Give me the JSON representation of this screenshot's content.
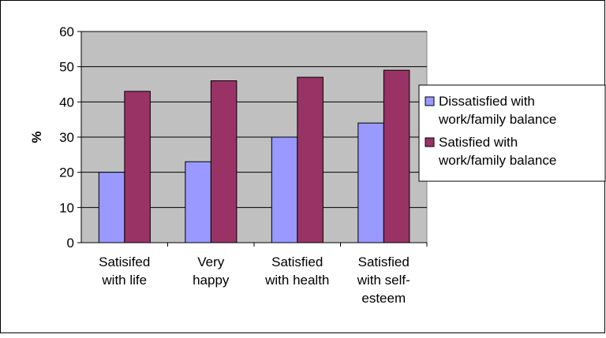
{
  "chart_data": {
    "type": "bar",
    "title": "",
    "xlabel": "",
    "ylabel": "%",
    "ylim": [
      0,
      60
    ],
    "yticks": [
      0,
      10,
      20,
      30,
      40,
      50,
      60
    ],
    "grid": true,
    "legend_position": "right",
    "categories": [
      [
        "Satisifed",
        "with life"
      ],
      [
        "Very",
        "happy"
      ],
      [
        "Satisfied",
        "with health"
      ],
      [
        "Satisfied",
        "with self-",
        "esteem"
      ]
    ],
    "series": [
      {
        "name": [
          "Dissatisfied with",
          "work/family balance"
        ],
        "color": "#9999ff",
        "values": [
          20,
          23,
          30,
          34
        ]
      },
      {
        "name": [
          "Satisfied with",
          "work/family balance"
        ],
        "color": "#993366",
        "values": [
          43,
          46,
          47,
          49
        ]
      }
    ],
    "plot_background": "#c0c0c0"
  }
}
